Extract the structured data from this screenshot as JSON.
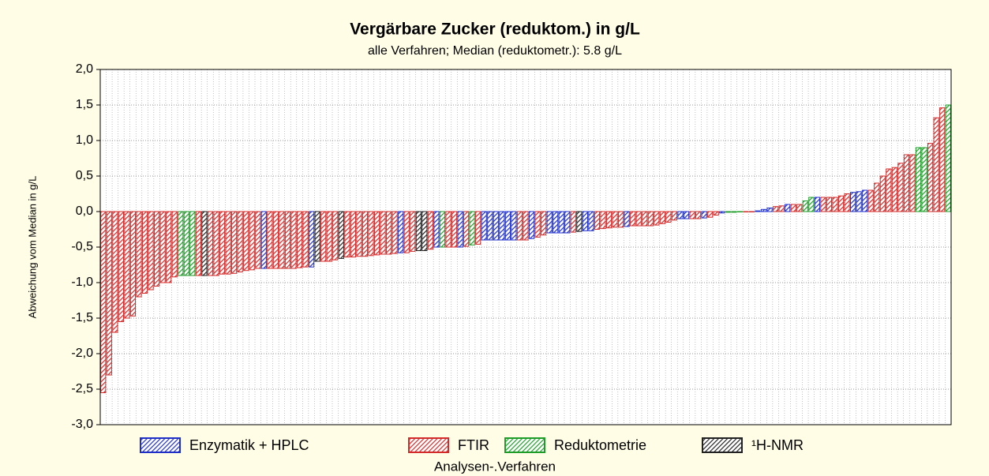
{
  "chart_data": {
    "type": "bar",
    "title": "Vergärbare Zucker (reduktom.) in g/L",
    "subtitle": "alle Verfahren; Median (reduktometr.): 5.8 g/L",
    "y_label": "Abweichung vom Median in g/L",
    "x_label": "Analysen-.Verfahren",
    "ylim": [
      -3,
      2
    ],
    "yticks": [
      {
        "value": -3,
        "label": "-3,0"
      },
      {
        "value": -2.5,
        "label": "-2,5"
      },
      {
        "value": -2,
        "label": "-2,0"
      },
      {
        "value": -1.5,
        "label": "-1,5"
      },
      {
        "value": -1,
        "label": "-1,0"
      },
      {
        "value": -0.5,
        "label": "-0,5"
      },
      {
        "value": 0,
        "label": "0,0"
      },
      {
        "value": 0.5,
        "label": "0,5"
      },
      {
        "value": 1,
        "label": "1,0"
      },
      {
        "value": 1.5,
        "label": "1,5"
      },
      {
        "value": 2,
        "label": "2,0"
      }
    ],
    "grid": true,
    "legend": [
      {
        "name": "Enzymatik + HPLC",
        "color": "#1f2fc8"
      },
      {
        "name": "FTIR",
        "color": "#d42a2a"
      },
      {
        "name": "Reduktometrie",
        "color": "#1e9e28"
      },
      {
        "name": "¹H-NMR",
        "color": "#222222"
      }
    ],
    "values": [
      -2.55,
      -2.3,
      -1.7,
      -1.55,
      -1.5,
      -1.47,
      -1.2,
      -1.15,
      -1.1,
      -1.05,
      -1.0,
      -1.0,
      -0.92,
      -0.9,
      -0.9,
      -0.9,
      -0.9,
      -0.9,
      -0.9,
      -0.9,
      -0.88,
      -0.88,
      -0.87,
      -0.85,
      -0.83,
      -0.82,
      -0.8,
      -0.8,
      -0.8,
      -0.8,
      -0.8,
      -0.8,
      -0.8,
      -0.79,
      -0.78,
      -0.78,
      -0.7,
      -0.7,
      -0.7,
      -0.68,
      -0.66,
      -0.64,
      -0.64,
      -0.63,
      -0.63,
      -0.62,
      -0.61,
      -0.6,
      -0.6,
      -0.59,
      -0.58,
      -0.58,
      -0.56,
      -0.55,
      -0.55,
      -0.53,
      -0.5,
      -0.5,
      -0.5,
      -0.5,
      -0.5,
      -0.49,
      -0.47,
      -0.46,
      -0.4,
      -0.4,
      -0.4,
      -0.4,
      -0.4,
      -0.4,
      -0.4,
      -0.4,
      -0.38,
      -0.36,
      -0.33,
      -0.3,
      -0.3,
      -0.3,
      -0.3,
      -0.29,
      -0.28,
      -0.27,
      -0.27,
      -0.25,
      -0.24,
      -0.23,
      -0.22,
      -0.22,
      -0.21,
      -0.2,
      -0.2,
      -0.2,
      -0.2,
      -0.19,
      -0.17,
      -0.15,
      -0.12,
      -0.1,
      -0.1,
      -0.1,
      -0.1,
      -0.09,
      -0.08,
      -0.05,
      -0.02,
      -0.01,
      -0.01,
      0,
      0,
      0,
      0.01,
      0.03,
      0.05,
      0.07,
      0.08,
      0.1,
      0.1,
      0.1,
      0.15,
      0.2,
      0.2,
      0.2,
      0.2,
      0.2,
      0.22,
      0.25,
      0.27,
      0.28,
      0.3,
      0.3,
      0.4,
      0.5,
      0.6,
      0.62,
      0.68,
      0.8,
      0.8,
      0.9,
      0.9,
      0.96,
      1.32,
      1.46,
      1.5
    ],
    "bar_colors": [
      "#d42a2a",
      "#d42a2a",
      "#d42a2a",
      "#d42a2a",
      "#d42a2a",
      "#d42a2a",
      "#d42a2a",
      "#d42a2a",
      "#d42a2a",
      "#d42a2a",
      "#d42a2a",
      "#d42a2a",
      "#d42a2a",
      "#1e9e28",
      "#1e9e28",
      "#1e9e28",
      "#d42a2a",
      "#222222",
      "#d42a2a",
      "#d42a2a",
      "#d42a2a",
      "#d42a2a",
      "#d42a2a",
      "#d42a2a",
      "#d42a2a",
      "#d42a2a",
      "#d42a2a",
      "#1f2fc8",
      "#d42a2a",
      "#d42a2a",
      "#d42a2a",
      "#d42a2a",
      "#d42a2a",
      "#d42a2a",
      "#d42a2a",
      "#1f2fc8",
      "#222222",
      "#d42a2a",
      "#d42a2a",
      "#d42a2a",
      "#222222",
      "#d42a2a",
      "#d42a2a",
      "#d42a2a",
      "#d42a2a",
      "#d42a2a",
      "#d42a2a",
      "#d42a2a",
      "#d42a2a",
      "#d42a2a",
      "#1f2fc8",
      "#d42a2a",
      "#d42a2a",
      "#222222",
      "#222222",
      "#d42a2a",
      "#1f2fc8",
      "#1e9e28",
      "#d42a2a",
      "#d42a2a",
      "#1f2fc8",
      "#d42a2a",
      "#1e9e28",
      "#d42a2a",
      "#1f2fc8",
      "#1f2fc8",
      "#1f2fc8",
      "#1f2fc8",
      "#1f2fc8",
      "#1f2fc8",
      "#d42a2a",
      "#d42a2a",
      "#1f2fc8",
      "#d42a2a",
      "#d42a2a",
      "#1f2fc8",
      "#1f2fc8",
      "#1f2fc8",
      "#1f2fc8",
      "#d42a2a",
      "#222222",
      "#1f2fc8",
      "#1f2fc8",
      "#d42a2a",
      "#d42a2a",
      "#d42a2a",
      "#d42a2a",
      "#d42a2a",
      "#1f2fc8",
      "#d42a2a",
      "#d42a2a",
      "#d42a2a",
      "#d42a2a",
      "#d42a2a",
      "#d42a2a",
      "#d42a2a",
      "#d42a2a",
      "#1f2fc8",
      "#1f2fc8",
      "#d42a2a",
      "#d42a2a",
      "#1f2fc8",
      "#d42a2a",
      "#d42a2a",
      "#1f2fc8",
      "#1e9e28",
      "#1e9e28",
      "#1e9e28",
      "#d42a2a",
      "#d42a2a",
      "#1f2fc8",
      "#1f2fc8",
      "#1f2fc8",
      "#d42a2a",
      "#d42a2a",
      "#1f2fc8",
      "#d42a2a",
      "#d42a2a",
      "#1e9e28",
      "#1e9e28",
      "#1f2fc8",
      "#d42a2a",
      "#d42a2a",
      "#d42a2a",
      "#d42a2a",
      "#d42a2a",
      "#1f2fc8",
      "#1f2fc8",
      "#1f2fc8",
      "#d42a2a",
      "#d42a2a",
      "#d42a2a",
      "#d42a2a",
      "#d42a2a",
      "#d42a2a",
      "#d42a2a",
      "#d42a2a",
      "#1e9e28",
      "#1e9e28",
      "#d42a2a",
      "#d42a2a",
      "#d42a2a",
      "#1e9e28"
    ]
  }
}
